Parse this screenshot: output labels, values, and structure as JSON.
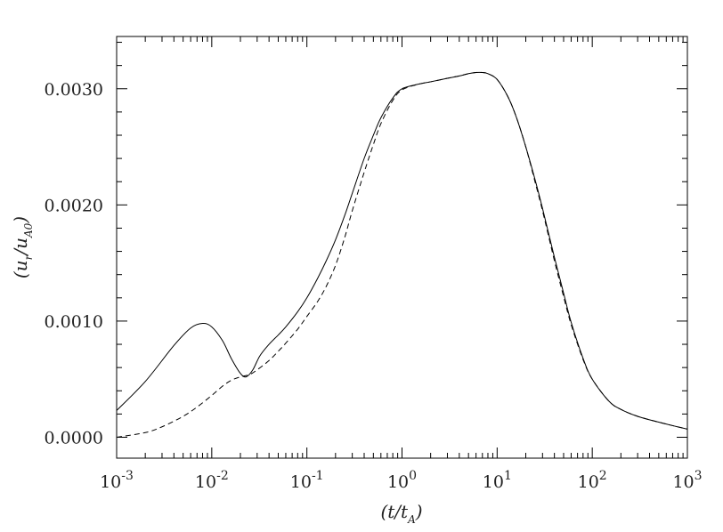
{
  "chart_data": {
    "type": "line",
    "x_scale": "log",
    "xlim": [
      0.001,
      1000
    ],
    "ylim": [
      -0.00018,
      0.00345
    ],
    "grid": false,
    "legend": "none",
    "x_ticks": [
      {
        "value": 0.001,
        "base": "10",
        "exp": "-3"
      },
      {
        "value": 0.01,
        "base": "10",
        "exp": "-2"
      },
      {
        "value": 0.1,
        "base": "10",
        "exp": "-1"
      },
      {
        "value": 1,
        "base": "10",
        "exp": "0"
      },
      {
        "value": 10,
        "base": "10",
        "exp": "1"
      },
      {
        "value": 100,
        "base": "10",
        "exp": "2"
      },
      {
        "value": 1000,
        "base": "10",
        "exp": "3"
      }
    ],
    "y_ticks": [
      {
        "value": 0.0,
        "label": "0.0000"
      },
      {
        "value": 0.001,
        "label": "0.0010"
      },
      {
        "value": 0.002,
        "label": "0.0020"
      },
      {
        "value": 0.003,
        "label": "0.0030"
      }
    ],
    "xlabel": {
      "open": "(t/t",
      "sub": "A",
      "close": ")"
    },
    "ylabel": {
      "open": "(u",
      "sub1": "r",
      "mid": "/u",
      "sub2": "A0",
      "close": ")"
    },
    "series": [
      {
        "style": "solid",
        "x": [
          0.001,
          0.002,
          0.004,
          0.006,
          0.008,
          0.01,
          0.013,
          0.016,
          0.02,
          0.023,
          0.027,
          0.032,
          0.04,
          0.05,
          0.06,
          0.08,
          0.1,
          0.13,
          0.16,
          0.2,
          0.25,
          0.3,
          0.4,
          0.5,
          0.6,
          0.8,
          1,
          1.5,
          2,
          3,
          4,
          5,
          6,
          7,
          8,
          10,
          13,
          16,
          20,
          25,
          30,
          40,
          50,
          60,
          80,
          100,
          150,
          200,
          300,
          500,
          700,
          1000
        ],
        "y": [
          0.00023,
          0.00048,
          0.00079,
          0.00094,
          0.00098,
          0.00095,
          0.00083,
          0.00068,
          0.00055,
          0.00052,
          0.00058,
          0.0007,
          0.0008,
          0.00088,
          0.00095,
          0.00108,
          0.0012,
          0.00137,
          0.00152,
          0.0017,
          0.00191,
          0.0021,
          0.0024,
          0.0026,
          0.00275,
          0.00292,
          0.003,
          0.00304,
          0.00306,
          0.00309,
          0.00311,
          0.00313,
          0.00314,
          0.00314,
          0.00313,
          0.00308,
          0.00293,
          0.00275,
          0.0025,
          0.00222,
          0.00197,
          0.00155,
          0.00124,
          0.00099,
          0.00068,
          0.0005,
          0.00031,
          0.00024,
          0.00018,
          0.00013,
          0.0001,
          7e-05
        ]
      },
      {
        "style": "dashed",
        "x": [
          0.001,
          0.002,
          0.003,
          0.005,
          0.007,
          0.01,
          0.013,
          0.016,
          0.02,
          0.025,
          0.03,
          0.04,
          0.05,
          0.06,
          0.08,
          0.1,
          0.13,
          0.16,
          0.2,
          0.25,
          0.3,
          0.4,
          0.5,
          0.6,
          0.8,
          1,
          1.5,
          2,
          3,
          4,
          5,
          6,
          7,
          8,
          10,
          13,
          16,
          20,
          25,
          30,
          40,
          50,
          60,
          80,
          100,
          150,
          200,
          300,
          500,
          700,
          1000
        ],
        "y": [
          0.0,
          4e-05,
          9e-05,
          0.00018,
          0.00026,
          0.00036,
          0.00044,
          0.00049,
          0.00052,
          0.00054,
          0.00058,
          0.00066,
          0.00074,
          0.00081,
          0.00093,
          0.00104,
          0.00117,
          0.0013,
          0.00148,
          0.00172,
          0.00195,
          0.00228,
          0.00252,
          0.0027,
          0.0029,
          0.00299,
          0.00304,
          0.00306,
          0.00309,
          0.00311,
          0.00313,
          0.00314,
          0.00314,
          0.00313,
          0.00308,
          0.00293,
          0.00275,
          0.0025,
          0.0022,
          0.00195,
          0.00152,
          0.00121,
          0.00097,
          0.00067,
          0.0005,
          0.00031,
          0.00024,
          0.00018,
          0.00013,
          0.0001,
          7e-05
        ]
      }
    ]
  }
}
